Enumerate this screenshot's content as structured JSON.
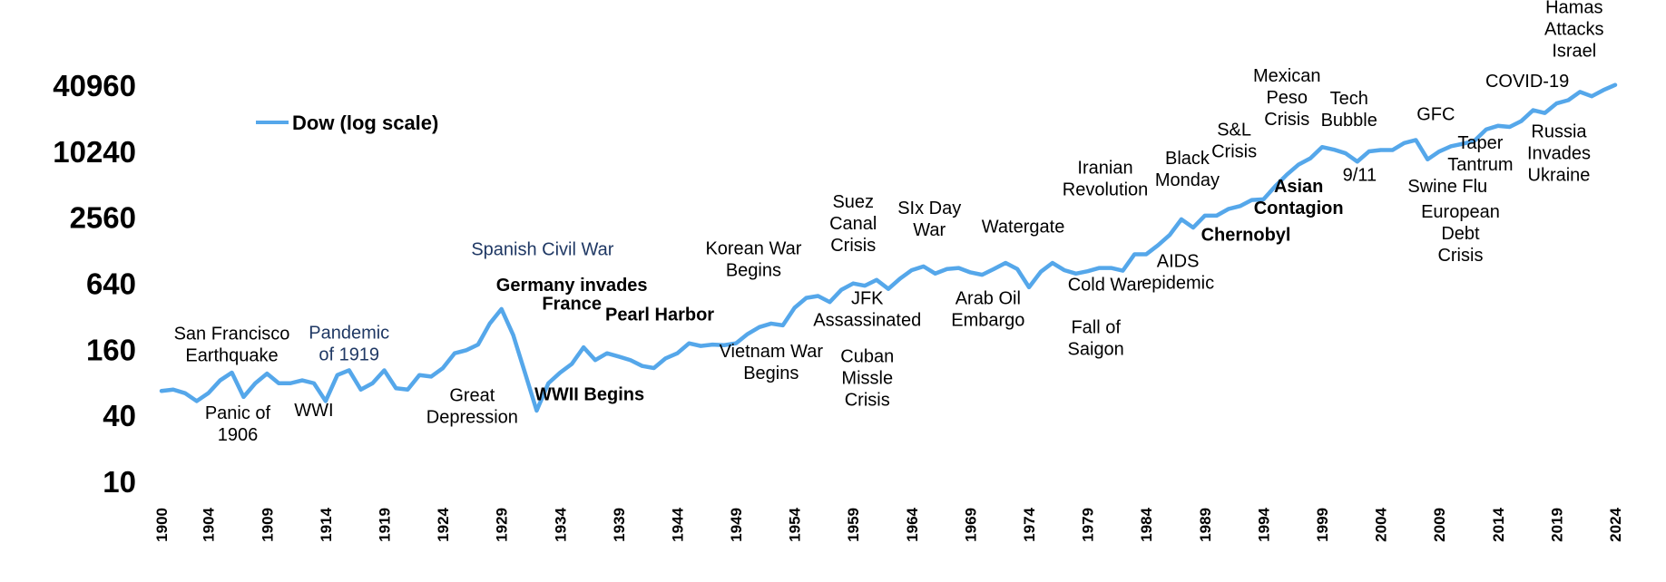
{
  "colors": {
    "series": "#55a7ea",
    "annotation_blue": "#1f3864",
    "text": "#000000"
  },
  "chart_data": {
    "type": "line",
    "title": "",
    "xlabel": "",
    "ylabel": "",
    "y_scale": "log",
    "xlim": [
      1900,
      2024
    ],
    "ylim": [
      10,
      40960
    ],
    "y_ticks": [
      10,
      40,
      160,
      640,
      2560,
      10240,
      40960
    ],
    "y_tick_labels": [
      "10",
      "40",
      "160",
      "640",
      "2560",
      "10240",
      "40960"
    ],
    "x_ticks": [
      1900,
      1904,
      1909,
      1914,
      1919,
      1924,
      1929,
      1934,
      1939,
      1944,
      1949,
      1954,
      1959,
      1964,
      1969,
      1974,
      1979,
      1984,
      1989,
      1994,
      1999,
      2004,
      2009,
      2014,
      2019,
      2024
    ],
    "x_tick_labels": [
      "1900",
      "1904",
      "1909",
      "1914",
      "1919",
      "1924",
      "1929",
      "1934",
      "1939",
      "1944",
      "1949",
      "1954",
      "1959",
      "1964",
      "1969",
      "1974",
      "1979",
      "1984",
      "1989",
      "1994",
      "1999",
      "2004",
      "2009",
      "2014",
      "2019",
      "2024"
    ],
    "grid": false,
    "legend": {
      "position": "top-left",
      "entries": [
        "Dow (log scale)"
      ]
    },
    "series": [
      {
        "name": "Dow (log scale)",
        "color": "#55a7ea",
        "x": [
          1900,
          1901,
          1902,
          1903,
          1904,
          1905,
          1906,
          1907,
          1908,
          1909,
          1910,
          1911,
          1912,
          1913,
          1914,
          1915,
          1916,
          1917,
          1918,
          1919,
          1920,
          1921,
          1922,
          1923,
          1924,
          1925,
          1926,
          1927,
          1928,
          1929,
          1930,
          1931,
          1932,
          1933,
          1934,
          1935,
          1936,
          1937,
          1938,
          1939,
          1940,
          1941,
          1942,
          1943,
          1944,
          1945,
          1946,
          1947,
          1948,
          1949,
          1950,
          1951,
          1952,
          1953,
          1954,
          1955,
          1956,
          1957,
          1958,
          1959,
          1960,
          1961,
          1962,
          1963,
          1964,
          1965,
          1966,
          1967,
          1968,
          1969,
          1970,
          1971,
          1972,
          1973,
          1974,
          1975,
          1976,
          1977,
          1978,
          1979,
          1980,
          1981,
          1982,
          1983,
          1984,
          1985,
          1986,
          1987,
          1988,
          1989,
          1990,
          1991,
          1992,
          1993,
          1994,
          1995,
          1996,
          1997,
          1998,
          1999,
          2000,
          2001,
          2002,
          2003,
          2004,
          2005,
          2006,
          2007,
          2008,
          2009,
          2010,
          2011,
          2012,
          2013,
          2014,
          2015,
          2016,
          2017,
          2018,
          2019,
          2020,
          2021,
          2022,
          2023,
          2024
        ],
        "values": [
          68,
          70,
          65,
          55,
          65,
          85,
          100,
          60,
          80,
          98,
          80,
          80,
          85,
          80,
          55,
          95,
          105,
          70,
          80,
          105,
          72,
          70,
          95,
          92,
          110,
          150,
          160,
          180,
          280,
          380,
          220,
          100,
          45,
          80,
          100,
          120,
          170,
          130,
          150,
          140,
          130,
          115,
          110,
          135,
          150,
          185,
          175,
          180,
          178,
          185,
          225,
          260,
          280,
          270,
          390,
          480,
          500,
          440,
          570,
          650,
          620,
          700,
          580,
          720,
          860,
          930,
          800,
          880,
          900,
          820,
          780,
          880,
          1000,
          880,
          600,
          830,
          1000,
          860,
          800,
          840,
          900,
          900,
          850,
          1200,
          1200,
          1450,
          1800,
          2500,
          2100,
          2700,
          2700,
          3100,
          3300,
          3750,
          3800,
          5000,
          6400,
          7900,
          9000,
          11400,
          10800,
          10000,
          8400,
          10400,
          10700,
          10700,
          12400,
          13200,
          8800,
          10400,
          11600,
          12200,
          13000,
          16500,
          17800,
          17400,
          19700,
          24700,
          23300,
          28500,
          30500,
          36300,
          33100,
          37700,
          42000
        ]
      }
    ],
    "annotations": [
      {
        "text": [
          "San Francisco",
          "Earthquake"
        ],
        "x": 1906,
        "y": 200,
        "color": "#000000",
        "bold": false
      },
      {
        "text": [
          "Panic of",
          "1906"
        ],
        "x": 1906.5,
        "y": 38,
        "color": "#000000",
        "bold": false
      },
      {
        "text": [
          "WWI"
        ],
        "x": 1913,
        "y": 40,
        "color": "#000000",
        "bold": false
      },
      {
        "text": [
          "Pandemic",
          "of 1919"
        ],
        "x": 1916,
        "y": 205,
        "color": "#1f3864",
        "bold": false
      },
      {
        "text": [
          "Great",
          "Depression"
        ],
        "x": 1926.5,
        "y": 55,
        "color": "#000000",
        "bold": false
      },
      {
        "text": [
          "Spanish Civil War"
        ],
        "x": 1932.5,
        "y": 1180,
        "color": "#1f3864",
        "bold": false
      },
      {
        "text": [
          "Germany invades"
        ],
        "x": 1935,
        "y": 555,
        "color": "#000000",
        "bold": true
      },
      {
        "text": [
          "France"
        ],
        "x": 1935,
        "y": 375,
        "color": "#000000",
        "bold": true
      },
      {
        "text": [
          "WWII Begins"
        ],
        "x": 1936.5,
        "y": 56,
        "color": "#000000",
        "bold": true
      },
      {
        "text": [
          "Pearl Harbor"
        ],
        "x": 1942.5,
        "y": 300,
        "color": "#000000",
        "bold": true
      },
      {
        "text": [
          "Korean War",
          "Begins"
        ],
        "x": 1950.5,
        "y": 1200,
        "color": "#000000",
        "bold": false
      },
      {
        "text": [
          "Vietnam War",
          "Begins"
        ],
        "x": 1952,
        "y": 138,
        "color": "#000000",
        "bold": false
      },
      {
        "text": [
          "Suez",
          "Canal",
          "Crisis"
        ],
        "x": 1959,
        "y": 3200,
        "color": "#000000",
        "bold": false
      },
      {
        "text": [
          "JFK",
          "Assassinated"
        ],
        "x": 1960.2,
        "y": 420,
        "color": "#000000",
        "bold": false
      },
      {
        "text": [
          "Cuban",
          "Missle",
          "Crisis"
        ],
        "x": 1960.2,
        "y": 125,
        "color": "#000000",
        "bold": false
      },
      {
        "text": [
          "SIx Day",
          "War"
        ],
        "x": 1965.5,
        "y": 2800,
        "color": "#000000",
        "bold": false
      },
      {
        "text": [
          "Arab Oil",
          "Embargo"
        ],
        "x": 1970.5,
        "y": 420,
        "color": "#000000",
        "bold": false
      },
      {
        "text": [
          "Watergate"
        ],
        "x": 1973.5,
        "y": 1900,
        "color": "#000000",
        "bold": false
      },
      {
        "text": [
          "Iranian",
          "Revolution"
        ],
        "x": 1980.5,
        "y": 6500,
        "color": "#000000",
        "bold": false
      },
      {
        "text": [
          "Cold War"
        ],
        "x": 1980.5,
        "y": 560,
        "color": "#000000",
        "bold": false
      },
      {
        "text": [
          "Fall of",
          "Saigon"
        ],
        "x": 1979.7,
        "y": 230,
        "color": "#000000",
        "bold": false
      },
      {
        "text": [
          "Black",
          "Monday"
        ],
        "x": 1987.5,
        "y": 8000,
        "color": "#000000",
        "bold": false
      },
      {
        "text": [
          "AIDS",
          "epidemic"
        ],
        "x": 1986.7,
        "y": 920,
        "color": "#000000",
        "bold": false
      },
      {
        "text": [
          "Chernobyl"
        ],
        "x": 1992.5,
        "y": 1600,
        "color": "#000000",
        "bold": true
      },
      {
        "text": [
          "S&L",
          "Crisis"
        ],
        "x": 1991.5,
        "y": 14500,
        "color": "#000000",
        "bold": false
      },
      {
        "text": [
          "Mexican",
          "Peso",
          "Crisis"
        ],
        "x": 1996,
        "y": 45000,
        "color": "#000000",
        "bold": false
      },
      {
        "text": [
          "Asian",
          "Contagion"
        ],
        "x": 1997,
        "y": 4400,
        "color": "#000000",
        "bold": true
      },
      {
        "text": [
          "Tech",
          "Bubble"
        ],
        "x": 2001.3,
        "y": 28000,
        "color": "#000000",
        "bold": false
      },
      {
        "text": [
          "9/11"
        ],
        "x": 2002.2,
        "y": 5600,
        "color": "#000000",
        "bold": false
      },
      {
        "text": [
          "GFC"
        ],
        "x": 2008.7,
        "y": 20000,
        "color": "#000000",
        "bold": false
      },
      {
        "text": [
          "Swine  Flu"
        ],
        "x": 2009.7,
        "y": 4400,
        "color": "#000000",
        "bold": false
      },
      {
        "text": [
          "European",
          "Debt",
          "Crisis"
        ],
        "x": 2010.8,
        "y": 2600,
        "color": "#000000",
        "bold": false
      },
      {
        "text": [
          "Taper",
          "Tantrum"
        ],
        "x": 2012.5,
        "y": 11000,
        "color": "#000000",
        "bold": false
      },
      {
        "text": [
          "COVID-19"
        ],
        "x": 2016.5,
        "y": 40000,
        "color": "#000000",
        "bold": false
      },
      {
        "text": [
          "Hamas",
          "Attacks",
          "Israel"
        ],
        "x": 2020.5,
        "y": 190000,
        "color": "#000000",
        "bold": false
      },
      {
        "text": [
          "Russia",
          "Invades",
          "Ukraine"
        ],
        "x": 2019.2,
        "y": 14000,
        "color": "#000000",
        "bold": false
      }
    ]
  }
}
